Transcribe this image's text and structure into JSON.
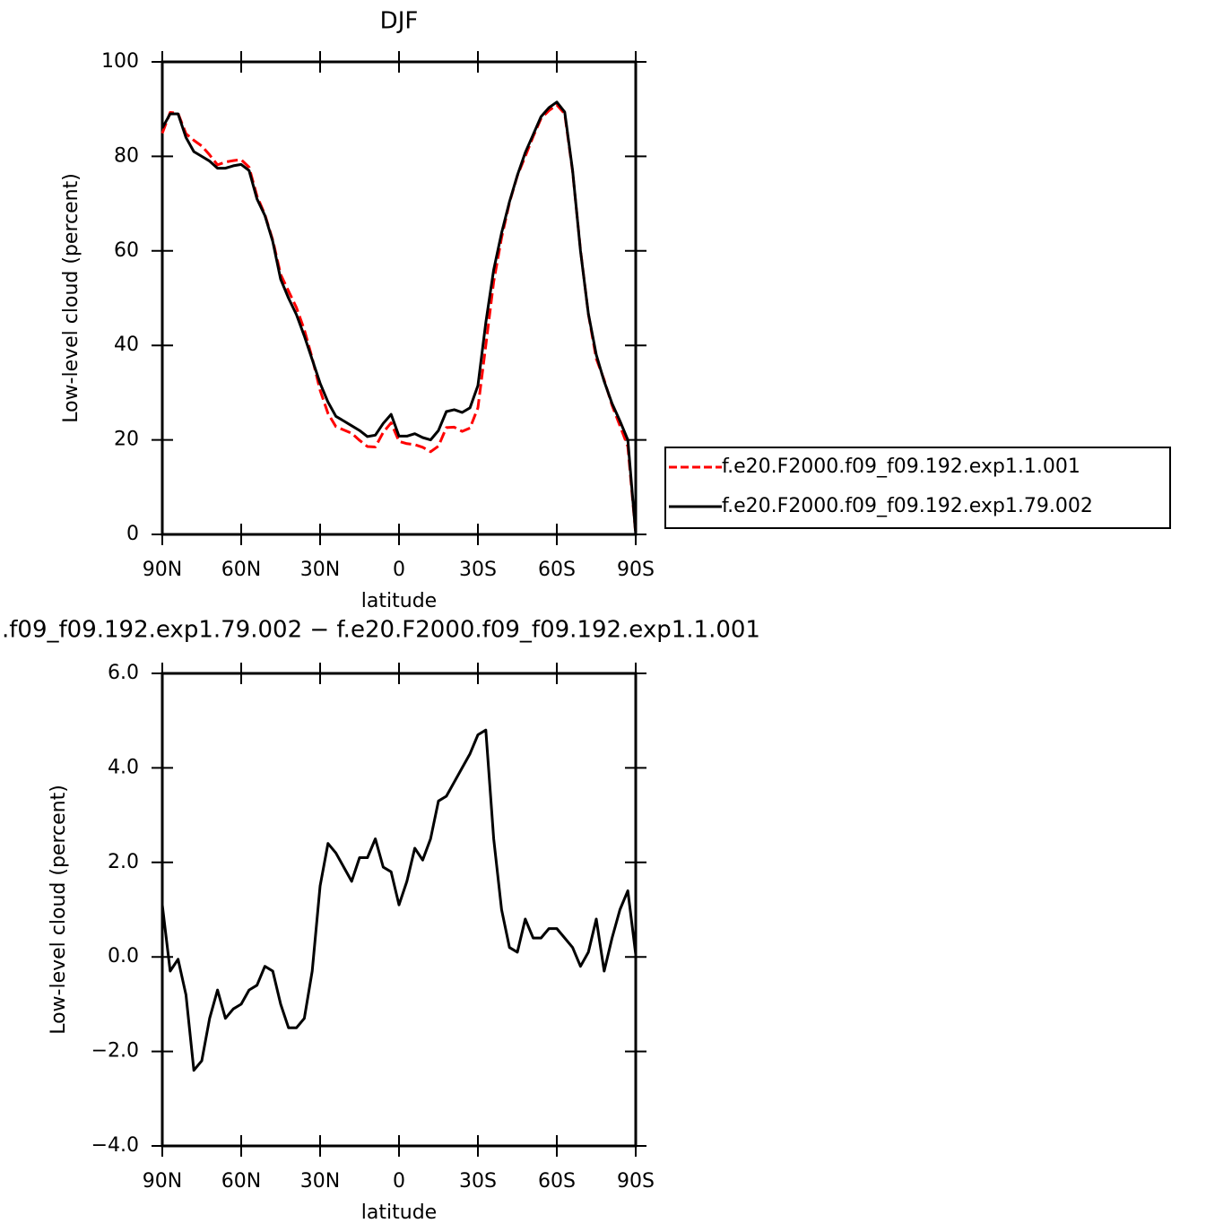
{
  "chart_data": [
    {
      "type": "line",
      "title": "DJF",
      "x_label": "latitude",
      "y_label": "Low-level cloud (percent)",
      "x": [
        90,
        87,
        84,
        81,
        78,
        75,
        72,
        69,
        66,
        63,
        60,
        57,
        54,
        51,
        48,
        45,
        42,
        39,
        36,
        33,
        30,
        27,
        24,
        21,
        18,
        15,
        12,
        9,
        6,
        3,
        0,
        -3,
        -6,
        -9,
        -12,
        -15,
        -18,
        -21,
        -24,
        -27,
        -30,
        -33,
        -36,
        -39,
        -42,
        -45,
        -48,
        -51,
        -54,
        -57,
        -60,
        -63,
        -66,
        -69,
        -72,
        -75,
        -78,
        -81,
        -84,
        -87,
        -90
      ],
      "series": [
        {
          "name": "f.e20.F2000.f09_f09.192.exp1.1.001",
          "color": "#ff0000",
          "dashed": true,
          "values": [
            84.9,
            89.3,
            89.1,
            84.8,
            83.4,
            82.2,
            80.3,
            78.2,
            78.8,
            79.1,
            79.3,
            77.7,
            71.6,
            67.7,
            62.3,
            55,
            51.5,
            48,
            43.3,
            37.3,
            30.5,
            25.6,
            22.8,
            22.1,
            21.4,
            19.9,
            18.6,
            18.5,
            21.6,
            23.6,
            19.7,
            19.2,
            19,
            18.45,
            17.5,
            18.7,
            22.6,
            22.7,
            21.8,
            22.5,
            26.8,
            40,
            53.5,
            62.8,
            70.2,
            75.9,
            80,
            84.2,
            88,
            89.7,
            90.9,
            89,
            76.8,
            60.2,
            46.6,
            37.2,
            32.7,
            27.3,
            23,
            18.6,
            0
          ]
        },
        {
          "name": "f.e20.F2000.f09_f09.192.exp1.79.002",
          "color": "#000000",
          "dashed": false,
          "values": [
            86,
            89,
            89,
            84,
            81,
            80,
            79,
            77.5,
            77.5,
            78,
            78.3,
            77,
            71,
            67.5,
            62,
            54,
            50,
            46.5,
            42,
            37,
            32,
            28,
            25,
            24,
            23,
            22,
            20.7,
            21,
            23.5,
            25.4,
            20.8,
            20.8,
            21.3,
            20.5,
            20,
            22,
            26,
            26.4,
            25.8,
            26.8,
            31.5,
            44.8,
            56,
            63.8,
            70.4,
            76,
            80.8,
            84.6,
            88.4,
            90.3,
            91.5,
            89.4,
            77,
            60,
            46.7,
            38,
            32.4,
            27.7,
            24,
            20,
            0
          ]
        }
      ],
      "xlim": [
        90,
        -90
      ],
      "xticks": [
        {
          "value": 90,
          "label": "90N"
        },
        {
          "value": 60,
          "label": "60N"
        },
        {
          "value": 30,
          "label": "30N"
        },
        0,
        {
          "value": -30,
          "label": "30S"
        },
        {
          "value": -60,
          "label": "60S"
        },
        {
          "value": -90,
          "label": "90S"
        }
      ],
      "ylim": [
        0,
        100
      ],
      "yticks": [
        0,
        20,
        40,
        60,
        80,
        100
      ],
      "legend": "right"
    },
    {
      "type": "line",
      "title": ".f09_f09.192.exp1.79.002 − f.e20.F2000.f09_f09.192.exp1.1.001",
      "x_label": "latitude",
      "y_label": "Low-level cloud (percent)",
      "x": [
        90,
        87,
        84,
        81,
        78,
        75,
        72,
        69,
        66,
        63,
        60,
        57,
        54,
        51,
        48,
        45,
        42,
        39,
        36,
        33,
        30,
        27,
        24,
        21,
        18,
        15,
        12,
        9,
        6,
        3,
        0,
        -3,
        -6,
        -9,
        -12,
        -15,
        -18,
        -21,
        -24,
        -27,
        -30,
        -33,
        -36,
        -39,
        -42,
        -45,
        -48,
        -51,
        -54,
        -57,
        -60,
        -63,
        -66,
        -69,
        -72,
        -75,
        -78,
        -81,
        -84,
        -87,
        -90
      ],
      "values": [
        1.1,
        -0.3,
        -0.05,
        -0.8,
        -2.4,
        -2.2,
        -1.3,
        -0.7,
        -1.3,
        -1.1,
        -1.0,
        -0.7,
        -0.6,
        -0.2,
        -0.3,
        -1.0,
        -1.5,
        -1.5,
        -1.3,
        -0.3,
        1.5,
        2.4,
        2.2,
        1.9,
        1.6,
        2.1,
        2.1,
        2.5,
        1.9,
        1.8,
        1.1,
        1.6,
        2.3,
        2.05,
        2.5,
        3.3,
        3.4,
        3.7,
        4.0,
        4.3,
        4.7,
        4.8,
        2.5,
        1.0,
        0.2,
        0.1,
        0.8,
        0.4,
        0.4,
        0.6,
        0.6,
        0.4,
        0.2,
        -0.2,
        0.1,
        0.8,
        -0.3,
        0.4,
        1.0,
        1.4,
        0.05
      ],
      "color": "#000000",
      "xlim": [
        90,
        -90
      ],
      "xticks": [
        {
          "value": 90,
          "label": "90N"
        },
        {
          "value": 60,
          "label": "60N"
        },
        {
          "value": 30,
          "label": "30N"
        },
        0,
        {
          "value": -30,
          "label": "30S"
        },
        {
          "value": -60,
          "label": "60S"
        },
        {
          "value": -90,
          "label": "90S"
        }
      ],
      "ylim": [
        -4,
        6
      ],
      "yticks": [
        {
          "value": -4,
          "label": "−4.0"
        },
        {
          "value": -2,
          "label": "−2.0"
        },
        {
          "value": 0,
          "label": "0.0"
        },
        {
          "value": 2,
          "label": "2.0"
        },
        {
          "value": 4,
          "label": "4.0"
        },
        {
          "value": 6,
          "label": "6.0"
        }
      ]
    }
  ]
}
